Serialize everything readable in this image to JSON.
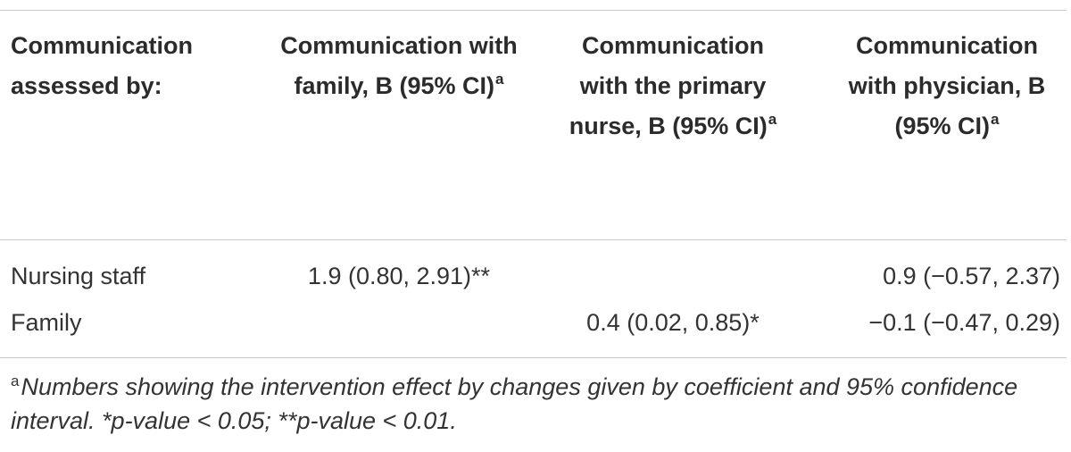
{
  "table": {
    "headers": [
      {
        "text": "Communication assessed by:",
        "sup": ""
      },
      {
        "text": "Communication with family, B (95% CI)",
        "sup": "a"
      },
      {
        "text": "Communication with the primary nurse, B (95% CI)",
        "sup": "a"
      },
      {
        "text": "Communication with physician, B (95% CI)",
        "sup": "a"
      }
    ],
    "rows": [
      {
        "label": "Nursing staff",
        "family": "1.9 (0.80, 2.91)**",
        "nurse": "",
        "physician": "0.9 (−0.57, 2.37)"
      },
      {
        "label": "Family",
        "family": "",
        "nurse": "0.4 (0.02, 0.85)*",
        "physician": "−0.1 (−0.47, 0.29)"
      }
    ],
    "footnote": {
      "marker": "a",
      "text": "Numbers showing the intervention effect by changes given by coefficient and 95% confidence interval. *p-value < 0.05; **p-value < 0.01."
    }
  }
}
